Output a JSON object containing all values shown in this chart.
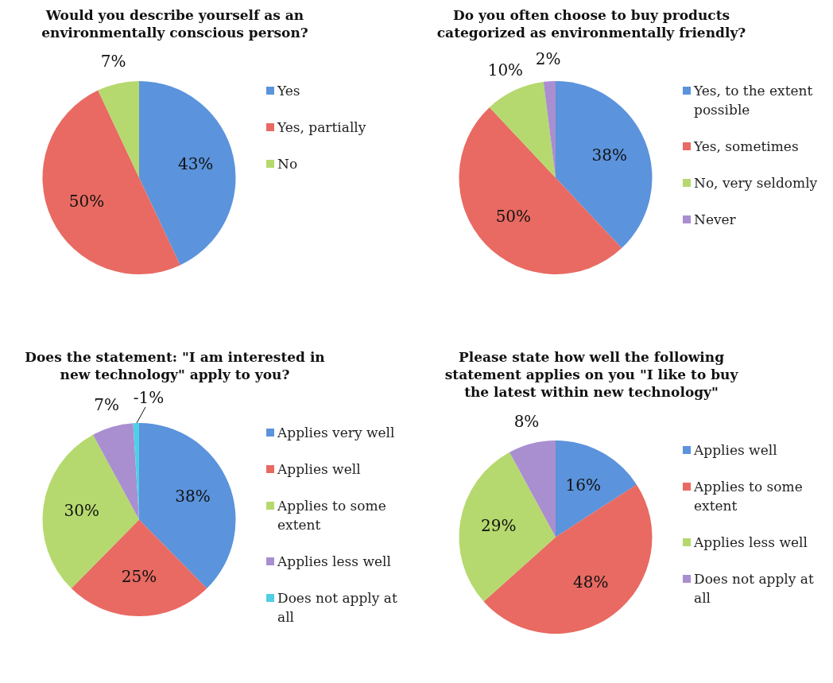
{
  "chart_data": [
    {
      "type": "pie",
      "title": "Would you describe yourself as an environmentally conscious person?",
      "categories": [
        "Yes",
        "Yes, partially",
        "No"
      ],
      "values": [
        43,
        50,
        7
      ],
      "value_labels": [
        "43%",
        "50%",
        "7%"
      ],
      "colors": [
        "#5b93dc",
        "#e86a62",
        "#b5d96e"
      ],
      "legend": "right"
    },
    {
      "type": "pie",
      "title": "Do you often choose to buy products categorized as environmentally friendly?",
      "categories": [
        "Yes, to the extent possible",
        "Yes, sometimes",
        "No, very seldomly",
        "Never"
      ],
      "values": [
        38,
        50,
        10,
        2
      ],
      "value_labels": [
        "38%",
        "50%",
        "10%",
        "2%"
      ],
      "colors": [
        "#5b93dc",
        "#e86a62",
        "#b5d96e",
        "#a98ed0"
      ],
      "legend": "right"
    },
    {
      "type": "pie",
      "title": "Does the statement: \"I am interested in new technology\" apply to you?",
      "categories": [
        "Applies very well",
        "Applies well",
        "Applies to some extent",
        "Applies  less well",
        "Does not apply at all"
      ],
      "values": [
        38,
        25,
        30,
        7,
        1
      ],
      "value_labels": [
        "38%",
        "25%",
        "30%",
        "7%",
        null
      ],
      "annotations": [
        "-1%"
      ],
      "colors": [
        "#5b93dc",
        "#e86a62",
        "#b5d96e",
        "#a98ed0",
        "#4fcfe6"
      ],
      "legend": "right"
    },
    {
      "type": "pie",
      "title": "Please state how well the following statement applies on you \"I like to buy the latest within new technology\"",
      "categories": [
        "Applies well",
        "Applies to some extent",
        "Applies less well",
        "Does not apply at all"
      ],
      "values": [
        16,
        48,
        29,
        8
      ],
      "value_labels": [
        "16%",
        "48%",
        "29%",
        "8%"
      ],
      "colors": [
        "#5b93dc",
        "#e86a62",
        "#b5d96e",
        "#a98ed0"
      ],
      "legend": "right"
    }
  ]
}
